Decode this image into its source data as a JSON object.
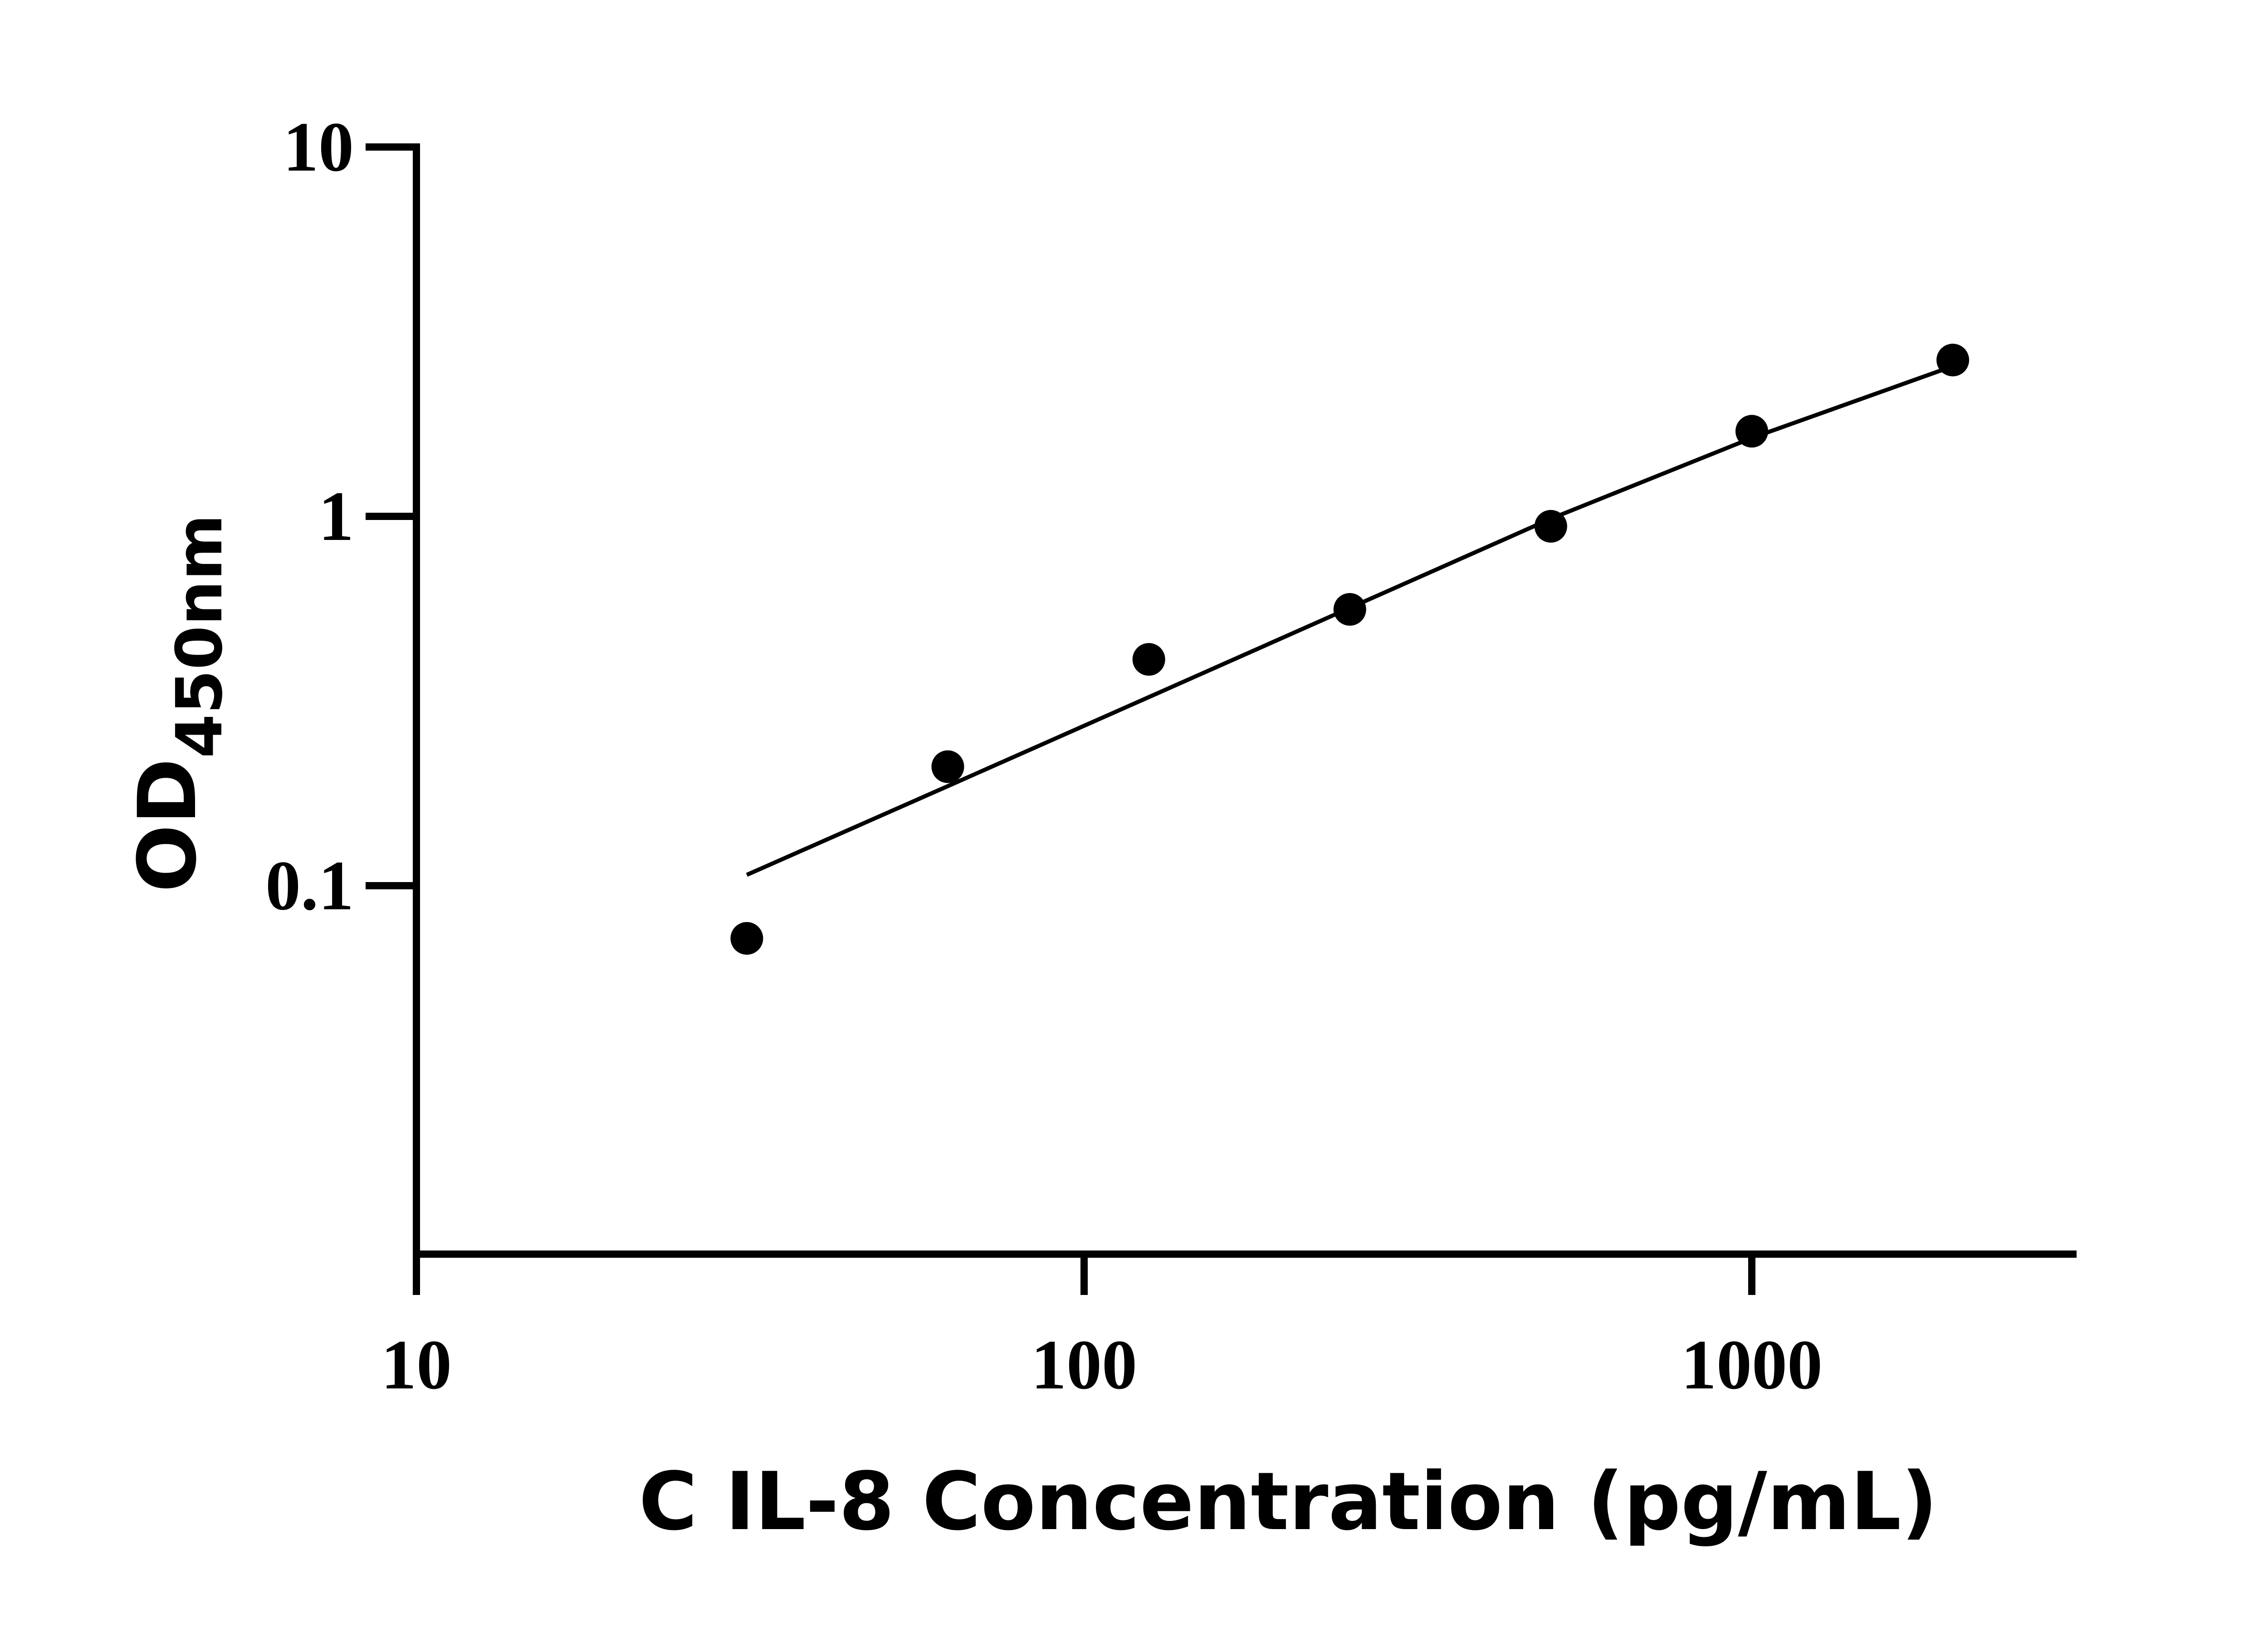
{
  "chart_data": {
    "type": "scatter",
    "title": "",
    "xlabel": "C IL-8 Concentration (pg/mL)",
    "ylabel": {
      "main": "OD",
      "subscript": "450nm"
    },
    "xscale": "log",
    "yscale": "log",
    "xlim": [
      10,
      3000
    ],
    "ylim": [
      0.01,
      10
    ],
    "x_ticks": [
      10,
      100,
      1000
    ],
    "x_tick_labels": [
      "10",
      "100",
      "1000"
    ],
    "y_ticks": [
      0.1,
      1,
      10
    ],
    "y_tick_labels": [
      "0.1",
      "1",
      "10"
    ],
    "grid": false,
    "legend": "none",
    "series": [
      {
        "kind": "points",
        "x": [
          31.25,
          62.5,
          125,
          250,
          500,
          1000,
          2000
        ],
        "y": [
          0.072,
          0.21,
          0.41,
          0.56,
          0.94,
          1.7,
          2.65
        ]
      },
      {
        "kind": "fit-line",
        "x": [
          31.25,
          62.5,
          125,
          250,
          500,
          1000,
          2000
        ],
        "y": [
          0.107,
          0.186,
          0.324,
          0.565,
          0.985,
          1.63,
          2.55
        ]
      }
    ]
  },
  "colors": {
    "axis": "#000000",
    "points": "#000000",
    "line": "#000000",
    "background": "#ffffff"
  }
}
